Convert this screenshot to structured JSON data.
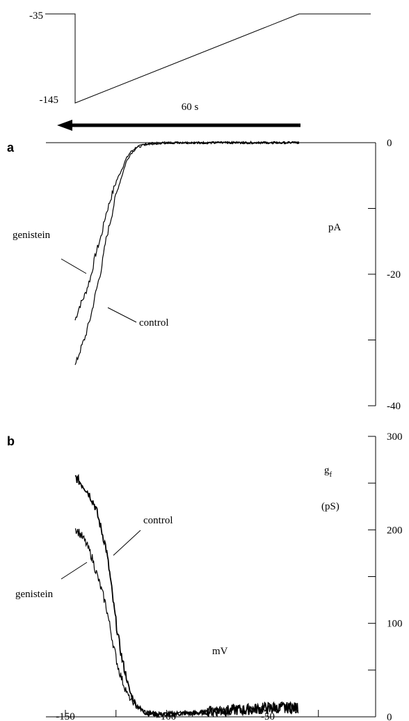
{
  "protocol": {
    "holding_label": "-35",
    "step_label": "-145",
    "duration_label": "60 s",
    "holding_mV": -35,
    "step_mV": -145
  },
  "chart_data": [
    {
      "panel": "a",
      "type": "line",
      "ylabel": "pA",
      "ylim": [
        -40,
        0
      ],
      "yticks": [
        0,
        -20,
        -40
      ],
      "ytick_labels": [
        "0",
        "-20",
        "-40"
      ],
      "xlim": [
        -145,
        -35
      ],
      "series": [
        {
          "name": "genistein",
          "x": [
            -145,
            -143,
            -140,
            -137,
            -135,
            -132,
            -130,
            -127,
            -125,
            -122,
            -120,
            -118,
            -115,
            -110,
            -100,
            -90,
            -80,
            -70,
            -60,
            -50,
            -40,
            -35
          ],
          "y": [
            -27,
            -25,
            -23,
            -20,
            -17,
            -14,
            -11,
            -8,
            -6,
            -4,
            -2.5,
            -1.5,
            -0.7,
            -0.2,
            0,
            0,
            0,
            0,
            0,
            0,
            0,
            0
          ]
        },
        {
          "name": "control",
          "x": [
            -145,
            -143,
            -140,
            -137,
            -135,
            -132,
            -130,
            -127,
            -125,
            -122,
            -120,
            -118,
            -115,
            -110,
            -100,
            -90,
            -80,
            -70,
            -60,
            -50,
            -40,
            -35
          ],
          "y": [
            -34,
            -32,
            -29.5,
            -26,
            -23,
            -19,
            -15,
            -11,
            -8,
            -5,
            -3,
            -1.8,
            -0.8,
            -0.2,
            0,
            0,
            0,
            0,
            0,
            0,
            0,
            0
          ]
        }
      ],
      "annotations": [
        "genistein",
        "control"
      ]
    },
    {
      "panel": "b",
      "type": "line",
      "ylabel": "gf (pS)",
      "ylabel_main": "g",
      "ylabel_sub": "f",
      "ylabel_unit": "(pS)",
      "xlabel": "mV",
      "xlim": [
        -160,
        -20
      ],
      "ylim": [
        0,
        300
      ],
      "xticks": [
        -150,
        -100,
        -50
      ],
      "xtick_labels": [
        "-150",
        "-100",
        "-50"
      ],
      "yticks": [
        0,
        100,
        200,
        300
      ],
      "ytick_labels": [
        "0",
        "100",
        "200",
        "300"
      ],
      "series": [
        {
          "name": "control",
          "x": [
            -145,
            -143,
            -140,
            -137,
            -135,
            -133,
            -130,
            -128,
            -126,
            -124,
            -122,
            -120,
            -118,
            -115,
            -112,
            -110,
            -105,
            -100,
            -90,
            -80,
            -70,
            -60,
            -50,
            -40,
            -35
          ],
          "y": [
            255,
            250,
            243,
            232,
            222,
            205,
            180,
            150,
            115,
            85,
            60,
            42,
            25,
            12,
            6,
            3,
            2,
            2,
            3,
            4,
            5,
            6,
            8,
            8,
            8
          ]
        },
        {
          "name": "genistein",
          "x": [
            -145,
            -143,
            -140,
            -137,
            -135,
            -133,
            -130,
            -128,
            -126,
            -124,
            -122,
            -120,
            -118,
            -115,
            -112,
            -110,
            -105,
            -100,
            -90,
            -80,
            -70,
            -60,
            -50,
            -40,
            -35
          ],
          "y": [
            200,
            195,
            185,
            170,
            155,
            140,
            118,
            95,
            72,
            52,
            38,
            27,
            18,
            10,
            6,
            4,
            3,
            2,
            3,
            4,
            5,
            6,
            8,
            8,
            8
          ]
        }
      ],
      "annotations": [
        "control",
        "genistein"
      ]
    }
  ]
}
